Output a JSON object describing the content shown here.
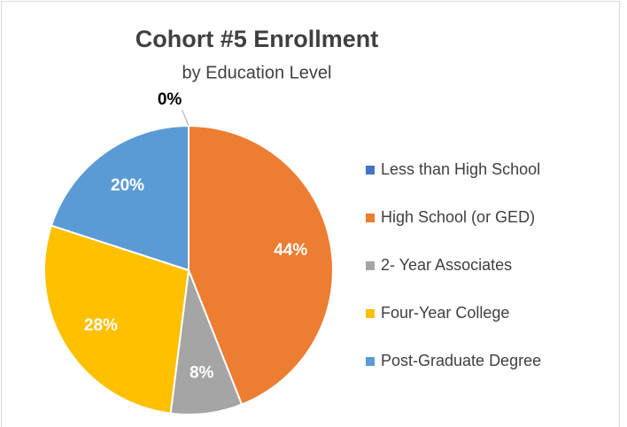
{
  "chart_data": {
    "type": "pie",
    "title": "Cohort #5 Enrollment",
    "subtitle": "by Education Level",
    "categories": [
      "Less than High School",
      "High School (or GED)",
      "2- Year Associates",
      "Four-Year College",
      "Post-Graduate Degree"
    ],
    "values": [
      0,
      44,
      8,
      28,
      20
    ],
    "value_labels": [
      "0%",
      "44%",
      "8%",
      "28%",
      "20%"
    ],
    "colors": [
      "#4472c4",
      "#ed7d31",
      "#a5a5a5",
      "#ffc000",
      "#5b9bd5"
    ],
    "legend": "right"
  }
}
